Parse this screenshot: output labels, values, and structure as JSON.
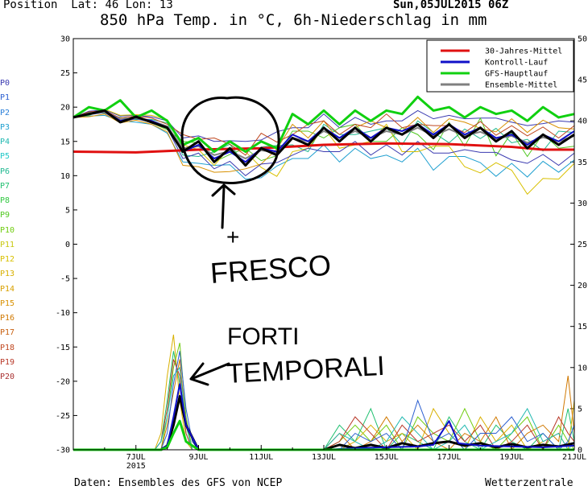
{
  "header": {
    "position_label": "Position",
    "lat_label": "Lat: 46",
    "lon_label": "Lon: 13",
    "datetime": "Sun,05JUL2015 06Z",
    "title": "850 hPa Temp. in °C, 6h-Niederschlag in mm"
  },
  "footer": {
    "source": "Daten: Ensembles des GFS von NCEP",
    "brand": "Wetterzentrale"
  },
  "ensemble_members": [
    {
      "label": "P0",
      "color": "#3a3ab0"
    },
    {
      "label": "P1",
      "color": "#2c5fd0"
    },
    {
      "label": "P2",
      "color": "#2a7fd8"
    },
    {
      "label": "P3",
      "color": "#20a0d0"
    },
    {
      "label": "P4",
      "color": "#20b8b0"
    },
    {
      "label": "P5",
      "color": "#20c8c8"
    },
    {
      "label": "P6",
      "color": "#20b890"
    },
    {
      "label": "P7",
      "color": "#20c070"
    },
    {
      "label": "P8",
      "color": "#30c840"
    },
    {
      "label": "P9",
      "color": "#50c820"
    },
    {
      "label": "P10",
      "color": "#70cc10"
    },
    {
      "label": "P11",
      "color": "#c8c810"
    },
    {
      "label": "P12",
      "color": "#d8c000"
    },
    {
      "label": "P13",
      "color": "#d8b000"
    },
    {
      "label": "P14",
      "color": "#d8a000"
    },
    {
      "label": "P15",
      "color": "#d89000"
    },
    {
      "label": "P16",
      "color": "#d07800"
    },
    {
      "label": "P17",
      "color": "#c86010"
    },
    {
      "label": "P18",
      "color": "#c04820"
    },
    {
      "label": "P19",
      "color": "#b83828"
    },
    {
      "label": "P20",
      "color": "#a83030"
    }
  ],
  "annotations": {
    "cooler_sign": "+",
    "cooler": "FRESCO",
    "storms_line1": "FORTI",
    "storms_line2": "TEMPORALI"
  },
  "chart_data": {
    "type": "line",
    "title": "850 hPa Temp. in °C, 6h-Niederschlag in mm",
    "xlabel": "",
    "ylabel": "",
    "x_ticks": [
      {
        "day": 2,
        "label": "7JUL",
        "sub": "2015"
      },
      {
        "day": 4,
        "label": "9JUL",
        "sub": ""
      },
      {
        "day": 6,
        "label": "11JUL",
        "sub": ""
      },
      {
        "day": 8,
        "label": "13JUL",
        "sub": ""
      },
      {
        "day": 10,
        "label": "15JUL",
        "sub": ""
      },
      {
        "day": 12,
        "label": "17JUL",
        "sub": ""
      },
      {
        "day": 14,
        "label": "19JUL",
        "sub": ""
      },
      {
        "day": 16,
        "label": "21JUL",
        "sub": ""
      }
    ],
    "xlim": [
      0,
      16
    ],
    "ylim_left": [
      -30,
      30
    ],
    "yticks_left": [
      -30,
      -25,
      -20,
      -15,
      -10,
      -5,
      0,
      5,
      10,
      15,
      20,
      25,
      30
    ],
    "ylim_right": [
      0,
      50
    ],
    "yticks_right": [
      0,
      5,
      10,
      15,
      20,
      25,
      30,
      35,
      40,
      45,
      50
    ],
    "grid": "off",
    "legend_position": "top-right",
    "series": [
      {
        "name": "30-Jahres-Mittel",
        "axis": "left",
        "color": "#e01010",
        "width": 3,
        "x": [
          0,
          2,
          4,
          6,
          8,
          10,
          12,
          14,
          15,
          16
        ],
        "y": [
          13.5,
          13.4,
          13.8,
          14.0,
          14.5,
          14.7,
          14.6,
          14.2,
          13.8,
          13.8
        ]
      },
      {
        "name": "Kontroll-Lauf",
        "axis": "left",
        "color": "#1010c8",
        "width": 2,
        "x": [
          0,
          0.5,
          1,
          1.5,
          2,
          2.5,
          3,
          3.5,
          4,
          4.5,
          5,
          5.5,
          6,
          6.5,
          7,
          7.5,
          8,
          8.5,
          9,
          9.5,
          10,
          10.5,
          11,
          11.5,
          12,
          12.5,
          13,
          13.5,
          14,
          14.5,
          15,
          15.5,
          16
        ],
        "y": [
          18.5,
          19,
          19.5,
          18,
          18.5,
          18,
          17,
          13.5,
          14.5,
          12.5,
          13.5,
          12,
          14,
          13.5,
          16,
          15,
          17,
          15.5,
          17,
          15.5,
          17,
          16.5,
          17.5,
          16,
          17.5,
          16,
          17,
          15.5,
          16,
          14.5,
          16,
          15,
          16.5
        ]
      },
      {
        "name": "GFS-Hauptlauf",
        "axis": "left",
        "color": "#10d010",
        "width": 3,
        "x": [
          0,
          0.5,
          1,
          1.5,
          2,
          2.5,
          3,
          3.5,
          4,
          4.5,
          5,
          5.5,
          6,
          6.5,
          7,
          7.5,
          8,
          8.5,
          9,
          9.5,
          10,
          10.5,
          11,
          11.5,
          12,
          12.5,
          13,
          13.5,
          14,
          14.5,
          15,
          15.5,
          16
        ],
        "y": [
          18.5,
          20,
          19.5,
          21,
          18.5,
          19.5,
          18,
          14.5,
          15.5,
          13.5,
          15,
          13.5,
          15,
          14,
          19,
          17.5,
          19.5,
          17.5,
          19.5,
          18,
          19.5,
          19,
          21.5,
          19.5,
          20,
          18.5,
          20,
          19,
          19.5,
          18,
          20,
          18.5,
          19
        ]
      },
      {
        "name": "Ensemble-Mittel",
        "axis": "left",
        "color": "#808080",
        "width": 2,
        "x": [
          0,
          0.5,
          1,
          1.5,
          2,
          2.5,
          3,
          3.5,
          4,
          4.5,
          5,
          5.5,
          6,
          6.5,
          7,
          7.5,
          8,
          8.5,
          9,
          9.5,
          10,
          10.5,
          11,
          11.5,
          12,
          12.5,
          13,
          13.5,
          14,
          14.5,
          15,
          15.5,
          16
        ],
        "y": [
          18.5,
          19,
          19.3,
          18.2,
          18.4,
          18,
          17.2,
          14,
          14.3,
          13,
          13.6,
          12.5,
          13.7,
          13.4,
          15.5,
          15,
          16.5,
          15.5,
          16.5,
          15.5,
          16.5,
          16,
          17,
          15.8,
          16.8,
          15.8,
          16.4,
          15.4,
          15.8,
          14.8,
          15.6,
          15,
          15.8
        ]
      },
      {
        "name": "",
        "axis": "left",
        "color": "#000000",
        "width": 3,
        "x": [
          0,
          0.5,
          1,
          1.5,
          2,
          2.5,
          3,
          3.5,
          4,
          4.5,
          5,
          5.5,
          6,
          6.5,
          7,
          7.5,
          8,
          8.5,
          9,
          9.5,
          10,
          10.5,
          11,
          11.5,
          12,
          12.5,
          13,
          13.5,
          14,
          14.5,
          15,
          15.5,
          16
        ],
        "y": [
          18.5,
          19,
          19.5,
          17.8,
          18.6,
          17.8,
          17,
          13.5,
          15,
          12,
          14,
          11.5,
          14,
          13,
          15.5,
          14.5,
          17,
          15,
          17,
          15,
          17,
          16,
          17.5,
          15.5,
          17.5,
          15.5,
          17,
          15,
          16.5,
          14,
          16,
          14.5,
          16
        ]
      },
      {
        "name": "",
        "axis": "right",
        "color": "#000000",
        "width": 3,
        "x": [
          0,
          1,
          2,
          2.8,
          3.0,
          3.2,
          3.4,
          3.6,
          4,
          6,
          8,
          8.5,
          9,
          9.5,
          10,
          10.5,
          11,
          11.5,
          12,
          12.5,
          13,
          13.5,
          14,
          14.5,
          15,
          15.5,
          16
        ],
        "y": [
          0,
          0,
          0,
          0,
          0.5,
          3,
          6.5,
          3,
          0,
          0,
          0,
          0.6,
          0.2,
          0.6,
          0.2,
          0.8,
          0.4,
          0.8,
          1.0,
          0.5,
          0.8,
          0.3,
          0.7,
          0.3,
          0.6,
          0.4,
          0.8
        ]
      },
      {
        "name": "",
        "axis": "right",
        "color": "#1010c8",
        "width": 2,
        "x": [
          0,
          2,
          2.8,
          3.0,
          3.2,
          3.4,
          3.6,
          4,
          8,
          9,
          10,
          11,
          11.5,
          12,
          12.3,
          13,
          14,
          15,
          16
        ],
        "y": [
          0,
          0,
          0,
          0.5,
          4,
          8,
          3,
          0,
          0,
          0.2,
          0.3,
          0.4,
          0.6,
          3.5,
          0.8,
          0.5,
          0.4,
          0.3,
          0.5
        ]
      },
      {
        "name": "",
        "axis": "right",
        "color": "#10d010",
        "width": 3,
        "x": [
          0,
          2,
          2.8,
          3.0,
          3.2,
          3.4,
          3.6,
          4,
          8,
          16
        ],
        "y": [
          0,
          0,
          0,
          0.3,
          2,
          3.5,
          1,
          0,
          0,
          0
        ]
      }
    ],
    "member_spread": {
      "x": [
        0,
        0.5,
        1,
        1.5,
        2,
        2.5,
        3,
        3.5,
        4,
        4.5,
        5,
        5.5,
        6,
        6.5,
        7,
        7.5,
        8,
        8.5,
        9,
        9.5,
        10,
        10.5,
        11,
        11.5,
        12,
        12.5,
        13,
        13.5,
        14,
        14.5,
        15,
        15.5,
        16
      ],
      "offsets": [
        [
          0,
          0.4,
          0.3,
          0.5,
          0.4,
          0.6,
          0.8,
          1.5,
          1.5,
          2.0,
          1.5,
          2.5,
          1.5,
          3.0,
          1.5,
          2.0,
          2.5,
          1.5,
          2.0,
          2.0,
          1.5,
          2.0,
          2.5,
          2.5,
          2.0,
          2.5,
          2.0,
          3.0,
          2.0,
          2.5,
          2.0,
          3.0,
          2.0
        ],
        [
          0,
          -0.3,
          -0.5,
          -0.2,
          -0.6,
          -0.5,
          -1.0,
          -2.0,
          -2.5,
          -1.5,
          -2.0,
          -3.0,
          -4.0,
          -2.0,
          -3.0,
          -2.5,
          -2.0,
          -3.5,
          -2.5,
          -3.0,
          -3.5,
          -4.0,
          -3.0,
          -5.0,
          -4.0,
          -3.0,
          -4.5,
          -5.5,
          -4.0,
          -5.0,
          -3.5,
          -4.5,
          -3.5
        ],
        [
          0,
          0.2,
          -0.2,
          0.3,
          -0.2,
          0.2,
          0.5,
          -1.0,
          -1.5,
          0.5,
          1.0,
          -1.0,
          0.5,
          1.0,
          -1.0,
          -1.5,
          1.0,
          0.5,
          -0.5,
          1.0,
          0.5,
          -1.5,
          1.0,
          0.5,
          -2.0,
          1.0,
          -1.0,
          1.5,
          -1.0,
          0.5,
          -2.0,
          1.5,
          0.5
        ],
        [
          0,
          -0.2,
          0.3,
          -0.3,
          0.3,
          -0.3,
          -0.5,
          1.0,
          0.5,
          -1.0,
          -0.5,
          1.5,
          -1.5,
          -0.5,
          1.0,
          1.5,
          -1.0,
          1.5,
          1.0,
          -0.5,
          -1.5,
          1.0,
          -1.0,
          -2.0,
          1.0,
          -1.5,
          2.0,
          -2.5,
          0.5,
          -2.0,
          0.5,
          -1.0,
          -1.5
        ],
        [
          0,
          0.1,
          0.4,
          0.6,
          0.5,
          0.8,
          1.0,
          0.5,
          -0.5,
          -1.5,
          0.5,
          1.0,
          -2.5,
          -3.5,
          -2.0,
          -1.0,
          0.5,
          -1.5,
          -2.0,
          -0.5,
          1.0,
          -2.5,
          -3.5,
          -1.5,
          -2.5,
          -4.5,
          -6.0,
          -3.5,
          -5.0,
          -7.5,
          -6.0,
          -5.5,
          -4.0
        ],
        [
          0,
          -0.4,
          -0.3,
          -0.5,
          -0.3,
          -0.5,
          -0.8,
          -2.5,
          -3.0,
          -2.5,
          -3.0,
          -1.5,
          -2.0,
          0.5,
          2.0,
          0.5,
          1.5,
          -0.5,
          0.5,
          2.5,
          0.5,
          0.5,
          1.5,
          0.5,
          1.5,
          2.0,
          0.5,
          1.0,
          2.5,
          1.5,
          2.5,
          2.0,
          1.0
        ],
        [
          0,
          0.3,
          0.2,
          0.2,
          0.3,
          0.4,
          0.3,
          2.0,
          1.0,
          2.5,
          1.0,
          0.5,
          2.5,
          1.5,
          0.5,
          2.5,
          1.5,
          0.5,
          1.0,
          1.5,
          2.5,
          1.0,
          0.5,
          1.5,
          0.5,
          0.5,
          1.5,
          0.5,
          1.5,
          1.0,
          1.5,
          0.5,
          1.5
        ],
        [
          0,
          -0.1,
          -0.1,
          -0.4,
          -0.1,
          -0.2,
          -0.3,
          -1.5,
          -1.0,
          -2.0,
          -1.5,
          -2.5,
          -2.0,
          -1.5,
          -2.5,
          -1.0,
          -3.0,
          -2.0,
          -1.5,
          -2.5,
          -2.0,
          -3.0,
          -2.0,
          -2.5,
          -3.5,
          -2.0,
          -3.0,
          -2.0,
          -3.5,
          -3.0,
          -2.5,
          -3.5,
          -2.5
        ]
      ]
    },
    "member_precip": {
      "x": [
        0,
        2,
        2.6,
        2.8,
        3.0,
        3.2,
        3.4,
        3.6,
        3.8,
        4,
        8,
        8.5,
        9,
        9.5,
        10,
        10.5,
        11,
        11.5,
        12,
        12.5,
        13,
        13.5,
        14,
        14.5,
        15,
        15.5,
        15.8,
        16
      ],
      "values": [
        [
          0,
          0,
          0,
          1,
          6,
          12,
          8,
          2,
          0,
          0,
          0,
          3,
          1,
          5,
          0,
          2,
          1,
          0,
          4,
          1,
          0,
          3,
          1,
          0,
          2,
          0,
          5,
          1
        ],
        [
          0,
          0,
          0,
          0,
          4,
          10,
          13,
          4,
          0,
          0,
          0,
          1,
          3,
          1,
          3,
          0,
          4,
          2,
          1,
          5,
          1,
          0,
          2,
          4,
          0,
          3,
          1,
          0
        ],
        [
          0,
          0,
          0,
          2,
          9,
          14,
          6,
          1,
          0,
          0,
          0,
          0,
          1,
          3,
          1,
          2,
          0,
          5,
          2,
          0,
          4,
          1,
          3,
          0,
          1,
          2,
          0,
          6
        ],
        [
          0,
          0,
          0,
          0,
          3,
          7,
          11,
          3,
          0,
          0,
          0,
          2,
          0,
          1,
          4,
          1,
          3,
          1,
          0,
          2,
          1,
          4,
          0,
          2,
          3,
          1,
          9,
          2
        ],
        [
          0,
          0,
          0,
          1,
          5,
          11,
          9,
          2,
          0,
          0,
          0,
          1,
          4,
          2,
          0,
          3,
          1,
          2,
          3,
          1,
          3,
          0,
          1,
          3,
          0,
          4,
          2,
          1
        ],
        [
          0,
          0,
          0,
          0,
          2,
          8,
          12,
          5,
          1,
          0,
          0,
          0,
          2,
          1,
          2,
          0,
          6,
          1,
          2,
          0,
          2,
          2,
          4,
          1,
          2,
          0,
          1,
          3
        ],
        [
          0,
          0,
          0,
          1,
          4,
          9,
          10,
          3,
          0,
          0,
          0,
          2,
          1,
          0,
          1,
          4,
          2,
          0,
          1,
          3,
          0,
          1,
          2,
          5,
          1,
          2,
          0,
          1
        ]
      ]
    }
  }
}
